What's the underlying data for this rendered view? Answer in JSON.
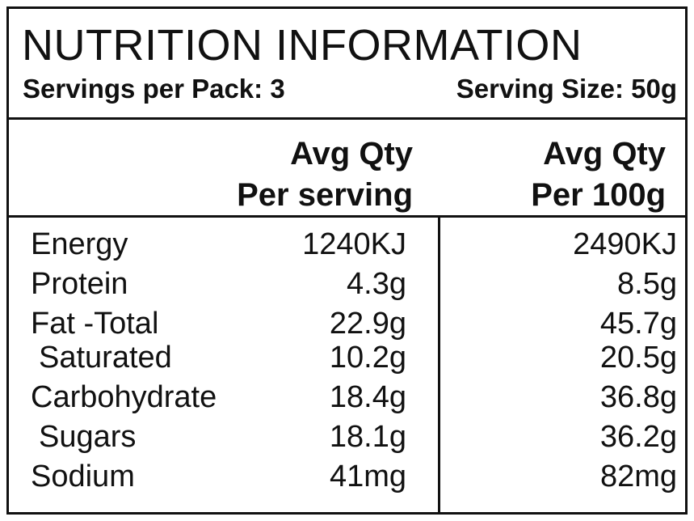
{
  "panel": {
    "title": "NUTRITION INFORMATION",
    "servings_per_pack": "Servings per Pack: 3",
    "serving_size": "Serving Size: 50g"
  },
  "columns": {
    "per_serving_line1": "Avg Qty",
    "per_serving_line2": "Per serving",
    "per_100g_line1": "Avg Qty",
    "per_100g_line2": "Per 100g"
  },
  "rows": [
    {
      "label": "Energy",
      "per_serving": "1240KJ",
      "per_100g": "2490KJ"
    },
    {
      "label": "Protein",
      "per_serving": "4.3g",
      "per_100g": "8.5g"
    },
    {
      "label": "Fat -Total",
      "per_serving": "22.9g",
      "per_100g": "45.7g"
    },
    {
      "label": "Saturated",
      "per_serving": "10.2g",
      "per_100g": "20.5g"
    },
    {
      "label": "Carbohydrate",
      "per_serving": "18.4g",
      "per_100g": "36.8g"
    },
    {
      "label": "Sugars",
      "per_serving": "18.1g",
      "per_100g": "36.2g"
    },
    {
      "label": "Sodium",
      "per_serving": "41mg",
      "per_100g": "82mg"
    }
  ]
}
